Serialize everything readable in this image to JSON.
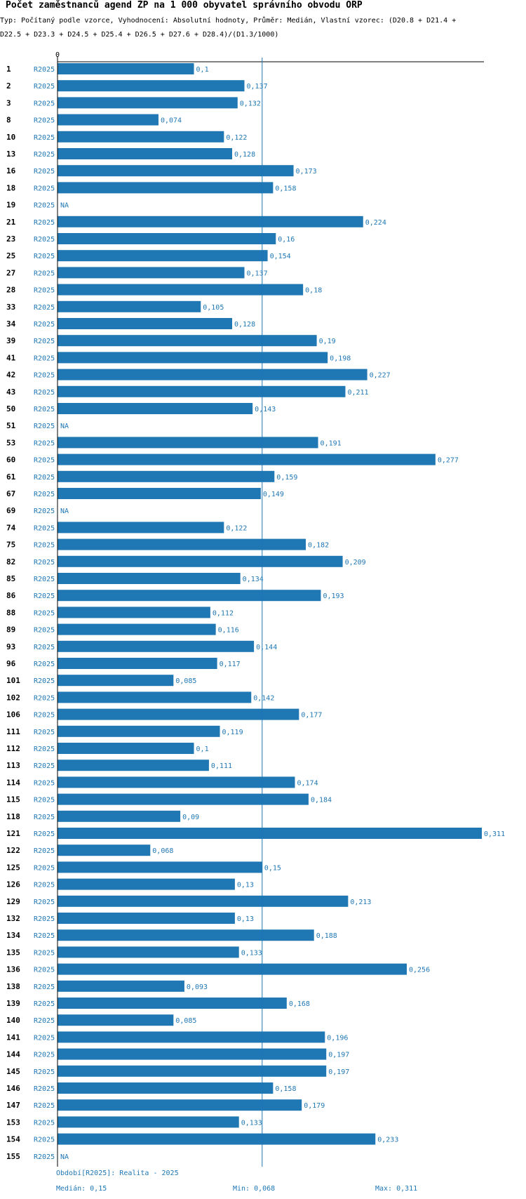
{
  "title": "Počet zaměstnanců agend ŽP na 1 000 obyvatel správního obvodu ORP",
  "subtitle": "Typ: Počítaný podle vzorce, Vyhodnocení: Absolutní hodnoty, Průměr: Medián, Vlastní vzorec: (D20.8 + D21.4 + D22.5 + D23.3 + D24.5 + D25.4 + D26.5 + D27.6 + D28.4)/(D1.3/1000)",
  "colors": {
    "bar": "#1f77b4",
    "label": "#1f77b4",
    "axis": "#000000",
    "median_line": "#1f77b4"
  },
  "chart_data": {
    "type": "bar",
    "orientation": "horizontal",
    "title": "Počet zaměstnanců agend ŽP na 1 000 obyvatel správního obvodu ORP",
    "series_label": "R2025",
    "axis_zero_label": "0",
    "xlim": [
      0,
      0.311
    ],
    "median": 0.15,
    "categories": [
      "1",
      "2",
      "3",
      "8",
      "10",
      "13",
      "16",
      "18",
      "19",
      "21",
      "23",
      "25",
      "27",
      "28",
      "33",
      "34",
      "39",
      "41",
      "42",
      "43",
      "50",
      "51",
      "53",
      "60",
      "61",
      "67",
      "69",
      "74",
      "75",
      "82",
      "85",
      "86",
      "88",
      "89",
      "93",
      "96",
      "101",
      "102",
      "106",
      "111",
      "112",
      "113",
      "114",
      "115",
      "118",
      "121",
      "122",
      "125",
      "126",
      "129",
      "132",
      "134",
      "135",
      "136",
      "138",
      "139",
      "140",
      "141",
      "144",
      "145",
      "146",
      "147",
      "153",
      "154",
      "155"
    ],
    "values": [
      0.1,
      0.137,
      0.132,
      0.074,
      0.122,
      0.128,
      0.173,
      0.158,
      null,
      0.224,
      0.16,
      0.154,
      0.137,
      0.18,
      0.105,
      0.128,
      0.19,
      0.198,
      0.227,
      0.211,
      0.143,
      null,
      0.191,
      0.277,
      0.159,
      0.149,
      null,
      0.122,
      0.182,
      0.209,
      0.134,
      0.193,
      0.112,
      0.116,
      0.144,
      0.117,
      0.085,
      0.142,
      0.177,
      0.119,
      0.1,
      0.111,
      0.174,
      0.184,
      0.09,
      0.311,
      0.068,
      0.15,
      0.13,
      0.213,
      0.13,
      0.188,
      0.133,
      0.256,
      0.093,
      0.168,
      0.085,
      0.196,
      0.197,
      0.197,
      0.158,
      0.179,
      0.133,
      0.233,
      null
    ],
    "value_labels": [
      "0,1",
      "0,137",
      "0,132",
      "0,074",
      "0,122",
      "0,128",
      "0,173",
      "0,158",
      "NA",
      "0,224",
      "0,16",
      "0,154",
      "0,137",
      "0,18",
      "0,105",
      "0,128",
      "0,19",
      "0,198",
      "0,227",
      "0,211",
      "0,143",
      "NA",
      "0,191",
      "0,277",
      "0,159",
      "0,149",
      "NA",
      "0,122",
      "0,182",
      "0,209",
      "0,134",
      "0,193",
      "0,112",
      "0,116",
      "0,144",
      "0,117",
      "0,085",
      "0,142",
      "0,177",
      "0,119",
      "0,1",
      "0,111",
      "0,174",
      "0,184",
      "0,09",
      "0,311",
      "0,068",
      "0,15",
      "0,13",
      "0,213",
      "0,13",
      "0,188",
      "0,133",
      "0,256",
      "0,093",
      "0,168",
      "0,085",
      "0,196",
      "0,197",
      "0,197",
      "0,158",
      "0,179",
      "0,133",
      "0,233",
      "NA"
    ]
  },
  "footer": {
    "period": "Období[R2025]: Realita - 2025",
    "median": "Medián: 0,15",
    "min": "Min: 0,068",
    "max": "Max: 0,311"
  }
}
